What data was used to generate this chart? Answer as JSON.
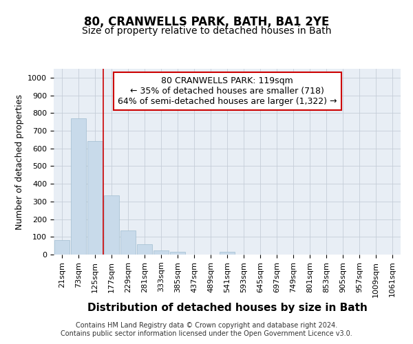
{
  "title1": "80, CRANWELLS PARK, BATH, BA1 2YE",
  "title2": "Size of property relative to detached houses in Bath",
  "xlabel": "Distribution of detached houses by size in Bath",
  "ylabel": "Number of detached properties",
  "footer": "Contains HM Land Registry data © Crown copyright and database right 2024.\nContains public sector information licensed under the Open Government Licence v3.0.",
  "categories": [
    "21sqm",
    "73sqm",
    "125sqm",
    "177sqm",
    "229sqm",
    "281sqm",
    "333sqm",
    "385sqm",
    "437sqm",
    "489sqm",
    "541sqm",
    "593sqm",
    "645sqm",
    "697sqm",
    "749sqm",
    "801sqm",
    "853sqm",
    "905sqm",
    "957sqm",
    "1009sqm",
    "1061sqm"
  ],
  "values": [
    80,
    770,
    640,
    335,
    135,
    60,
    25,
    15,
    0,
    0,
    15,
    0,
    0,
    0,
    0,
    0,
    0,
    0,
    0,
    0,
    0
  ],
  "bar_color": "#c8daea",
  "bar_edge_color": "#a0bdd0",
  "red_line_index": 2,
  "red_line_color": "#cc0000",
  "annotation_text": "80 CRANWELLS PARK: 119sqm\n← 35% of detached houses are smaller (718)\n64% of semi-detached houses are larger (1,322) →",
  "annotation_box_color": "#cc0000",
  "ylim": [
    0,
    1050
  ],
  "yticks": [
    0,
    100,
    200,
    300,
    400,
    500,
    600,
    700,
    800,
    900,
    1000
  ],
  "fig_background": "#ffffff",
  "plot_background": "#e8eef5",
  "grid_color": "#c5cdd8",
  "title1_fontsize": 12,
  "title2_fontsize": 10,
  "xlabel_fontsize": 11,
  "ylabel_fontsize": 9,
  "tick_fontsize": 8,
  "footer_fontsize": 7,
  "annotation_fontsize": 9
}
